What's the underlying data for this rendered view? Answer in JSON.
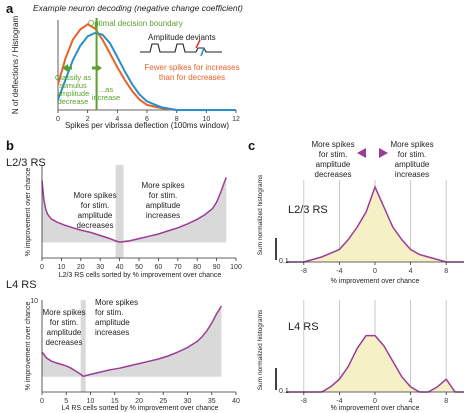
{
  "figure": {
    "panel_a": {
      "letter": "a",
      "title": "Example neuron decoding (negative change coefficient)",
      "boundary_label": "Optimal decision boundary",
      "classify_decrease": [
        "Classify as",
        "stimulus",
        "amplitude",
        "decrease"
      ],
      "classify_increase": [
        "...as",
        "increase"
      ],
      "inset_label": "Amplitude deviants",
      "fewer_spikes": [
        "Fewer spikes for increases",
        "than for decreases"
      ]
    },
    "panel_b": {
      "letter": "b",
      "top_layer": "L2/3 RS",
      "bottom_layer": "L4 RS",
      "decrease_text": [
        "More spikes",
        "for stim.",
        "amplitude",
        "decreases"
      ],
      "increase_text": [
        "More spikes",
        "for stim.",
        "amplitude",
        "increases"
      ]
    },
    "panel_c": {
      "letter": "c",
      "decrease_text": [
        "More spikes",
        "for stim.",
        "amplitude",
        "decreases"
      ],
      "increase_text": [
        "More spikes",
        "for stim.",
        "amplitude",
        "increases"
      ],
      "top_layer": "L2/3 RS",
      "bottom_layer": "L4 RS",
      "scalebar_value": "0.1"
    },
    "colors": {
      "decrease_curve": "#e8632a",
      "increase_curve": "#2a8fc8",
      "boundary": "#5aa02c",
      "purple": "#9b3d97",
      "gray_fill": "#d9d9d9",
      "yellow_fill": "#f5f0c6",
      "accent_red": "#e3342f"
    }
  },
  "chart_data": [
    {
      "type": "line",
      "panel": "a",
      "title": "Example neuron decoding (negative change coefficient)",
      "xlabel": "Spikes per vibrissa deflection (100ms window)",
      "ylabel": "N of deflections / Histogram",
      "xlim": [
        0,
        12
      ],
      "xticks": [
        "0",
        "2",
        "4",
        "6",
        "8",
        "10",
        "12"
      ],
      "decision_boundary": 2.6,
      "series": [
        {
          "x": [
            0,
            0.5,
            1,
            1.5,
            2,
            2.5,
            3,
            3.5,
            4,
            4.5,
            5,
            5.5,
            6,
            7,
            8,
            10,
            12
          ],
          "values": [
            0.3,
            0.6,
            0.82,
            0.94,
            1.0,
            0.95,
            0.82,
            0.66,
            0.5,
            0.35,
            0.22,
            0.12,
            0.06,
            0.02,
            0.0,
            0.0,
            0.0
          ]
        },
        {
          "x": [
            0,
            0.5,
            1,
            1.5,
            2,
            2.5,
            3,
            3.5,
            4,
            4.5,
            5,
            5.5,
            6,
            7,
            8,
            10,
            12
          ],
          "values": [
            0.12,
            0.35,
            0.58,
            0.75,
            0.86,
            0.9,
            0.88,
            0.78,
            0.62,
            0.45,
            0.3,
            0.18,
            0.1,
            0.03,
            0.0,
            0.0,
            0.0
          ]
        }
      ]
    },
    {
      "type": "area",
      "panel": "b",
      "layer": "L2/3 RS",
      "xlabel": "L2/3 RS cells sorted by % improvement over chance",
      "ylabel": "% improvement over chance",
      "xlim": [
        0,
        100
      ],
      "ylim": [
        -2,
        10
      ],
      "xticks": [
        "0",
        "10",
        "20",
        "30",
        "40",
        "50",
        "60",
        "70",
        "80",
        "90",
        "100"
      ],
      "zero_crossing": 40,
      "x": [
        0,
        1,
        2,
        3,
        5,
        8,
        12,
        16,
        20,
        25,
        30,
        35,
        38,
        40,
        45,
        50,
        55,
        60,
        65,
        70,
        75,
        80,
        84,
        88,
        90,
        92,
        94,
        95
      ],
      "values": [
        8,
        5.5,
        4.2,
        3.6,
        3.0,
        2.6,
        2.2,
        1.9,
        1.6,
        1.3,
        0.9,
        0.5,
        0.2,
        0.05,
        0.2,
        0.5,
        0.8,
        1.1,
        1.5,
        1.9,
        2.4,
        3.0,
        3.6,
        4.4,
        5.2,
        6.4,
        7.8,
        8.4
      ]
    },
    {
      "type": "area",
      "panel": "b",
      "layer": "L4 RS",
      "xlabel": "L4 RS cells sorted by % improvement over chance",
      "ylabel": "% improvement over chance",
      "xlim": [
        0,
        40
      ],
      "ylim": [
        -2,
        10
      ],
      "yticks": [
        "10"
      ],
      "xticks": [
        "0",
        "5",
        "10",
        "15",
        "20",
        "25",
        "30",
        "35",
        "40"
      ],
      "zero_crossing": 8.5,
      "x": [
        0,
        1,
        2,
        3,
        4,
        5,
        6,
        7,
        8,
        8.5,
        10,
        12,
        14,
        16,
        18,
        20,
        22,
        24,
        26,
        28,
        30,
        32,
        33,
        34,
        35,
        36,
        37
      ],
      "values": [
        3.2,
        2.4,
        2.0,
        1.8,
        1.6,
        1.4,
        1.1,
        0.7,
        0.3,
        0.05,
        0.3,
        0.6,
        0.9,
        1.1,
        1.4,
        1.7,
        2.0,
        2.3,
        2.7,
        3.2,
        3.8,
        4.6,
        5.2,
        6.0,
        7.0,
        8.2,
        9.2
      ]
    },
    {
      "type": "area",
      "panel": "c",
      "layer": "L2/3 RS",
      "xlabel": "% improvement over chance",
      "ylabel": "Sum normalized histograms",
      "xlim": [
        -10,
        10
      ],
      "xticks": [
        "-8",
        "-4",
        "0",
        "4",
        "8"
      ],
      "x": [
        -10,
        -8,
        -6,
        -4,
        -3,
        -2,
        -1,
        0,
        1,
        2,
        3,
        4,
        5,
        6,
        7,
        8,
        9,
        10
      ],
      "values": [
        0.0,
        0.0,
        0.02,
        0.05,
        0.09,
        0.14,
        0.2,
        0.3,
        0.22,
        0.14,
        0.09,
        0.05,
        0.03,
        0.02,
        0.01,
        0.0,
        0.0,
        0.0
      ]
    },
    {
      "type": "area",
      "panel": "c",
      "layer": "L4 RS",
      "xlabel": "% improvement over chance",
      "ylabel": "Sum normalized histograms",
      "xlim": [
        -10,
        10
      ],
      "xticks": [
        "-8",
        "-4",
        "0",
        "4",
        "8"
      ],
      "x": [
        -10,
        -6,
        -5,
        -4,
        -3,
        -2,
        -1,
        0,
        1,
        2,
        3,
        4,
        5,
        6,
        7,
        8,
        9,
        10
      ],
      "values": [
        0.0,
        0.0,
        0.02,
        0.05,
        0.1,
        0.17,
        0.22,
        0.22,
        0.18,
        0.12,
        0.06,
        0.02,
        0.0,
        0.0,
        0.02,
        0.05,
        0.0,
        0.0
      ]
    }
  ]
}
